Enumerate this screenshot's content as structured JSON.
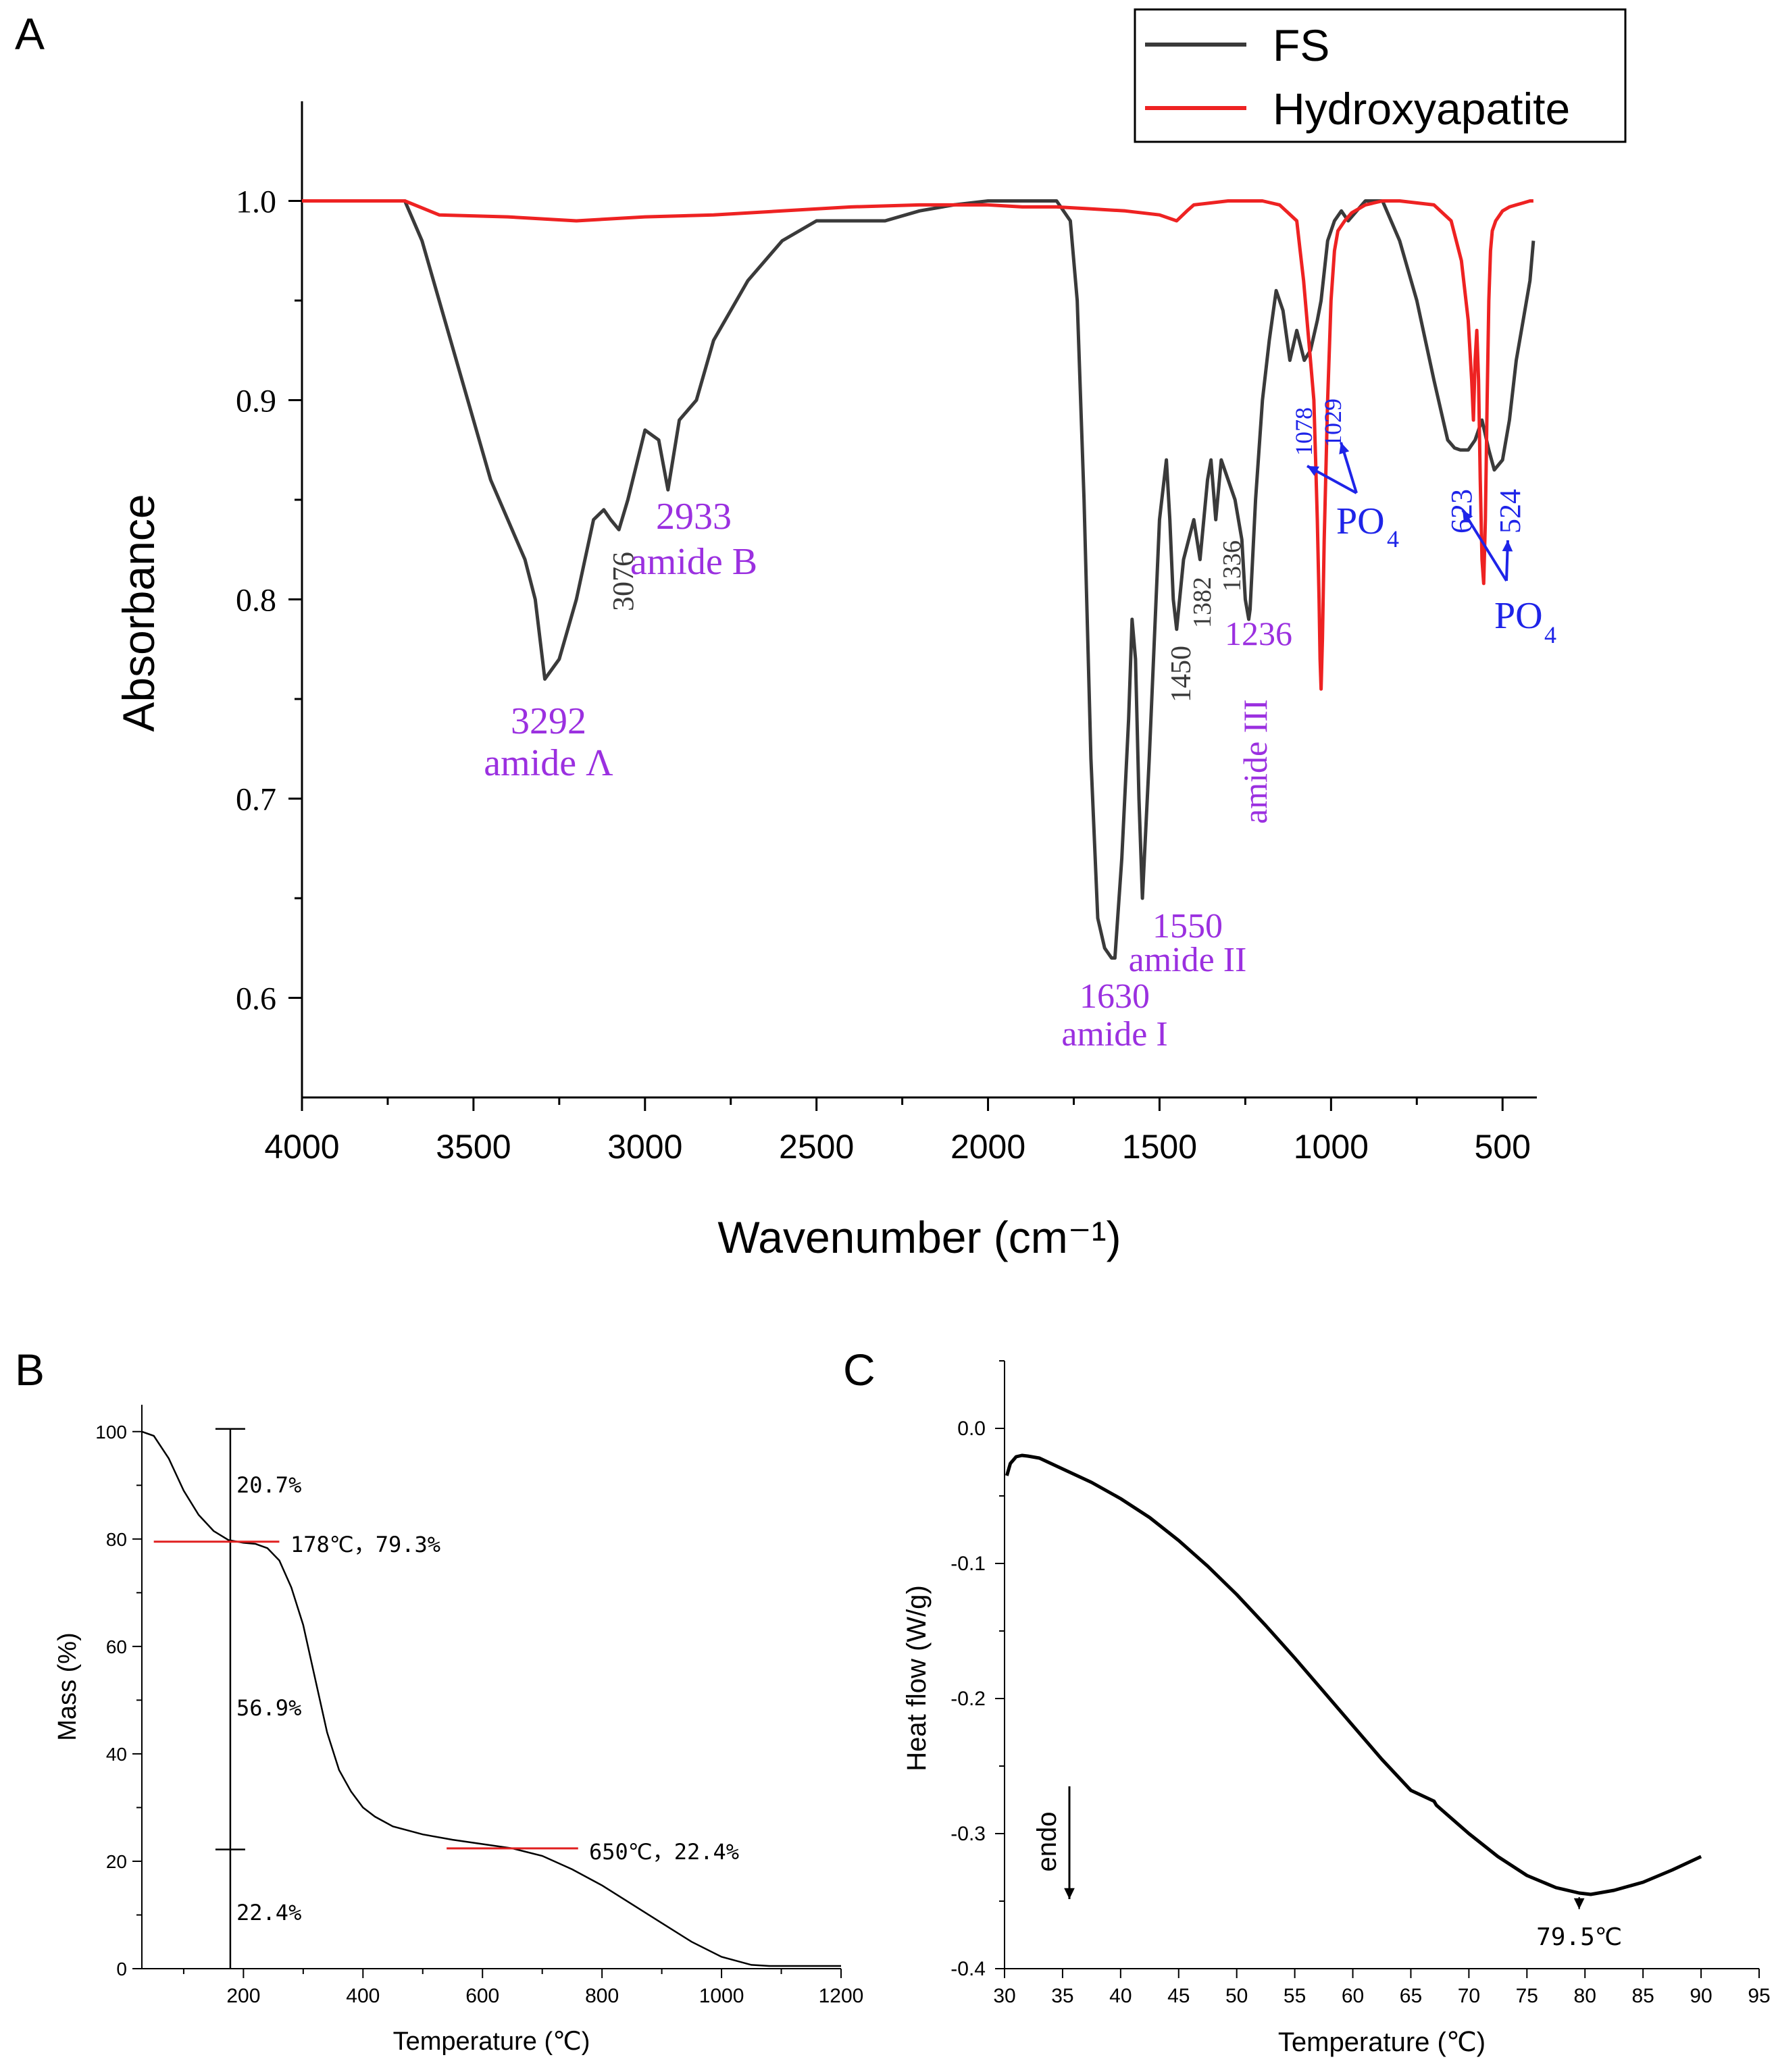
{
  "panels": {
    "a": "A",
    "b": "B",
    "c": "C"
  },
  "colors": {
    "fs": "#3a3a3a",
    "ha": "#ee2222",
    "purple": "#9b30e0",
    "blue": "#1e24e8",
    "red": "#e02020",
    "axis": "#000000"
  },
  "chart_data": [
    {
      "id": "A",
      "type": "line",
      "title": "",
      "xlabel": "Wavenumber (cm⁻¹)",
      "ylabel": "Absorbance",
      "xlim": [
        4000,
        400
      ],
      "ylim": [
        0.55,
        1.05
      ],
      "xticks": [
        4000,
        3500,
        3000,
        2500,
        2000,
        1500,
        1000,
        500
      ],
      "yticks": [
        0.6,
        0.7,
        0.8,
        0.9,
        1.0
      ],
      "legend": {
        "position": "top-right",
        "entries": [
          "FS",
          "Hydroxyapatite"
        ]
      },
      "series": [
        {
          "name": "FS",
          "x": [
            4000,
            3700,
            3650,
            3600,
            3550,
            3500,
            3450,
            3400,
            3350,
            3320,
            3292,
            3250,
            3200,
            3150,
            3120,
            3100,
            3076,
            3050,
            3000,
            2960,
            2933,
            2900,
            2850,
            2800,
            2700,
            2600,
            2500,
            2300,
            2200,
            2100,
            2000,
            1900,
            1800,
            1760,
            1740,
            1720,
            1700,
            1680,
            1660,
            1640,
            1630,
            1610,
            1590,
            1580,
            1570,
            1560,
            1550,
            1530,
            1500,
            1480,
            1470,
            1460,
            1450,
            1430,
            1400,
            1382,
            1360,
            1350,
            1336,
            1320,
            1300,
            1280,
            1260,
            1250,
            1240,
            1236,
            1220,
            1200,
            1180,
            1160,
            1140,
            1120,
            1100,
            1078,
            1060,
            1040,
            1029,
            1010,
            990,
            970,
            950,
            900,
            850,
            800,
            750,
            700,
            660,
            640,
            623,
            600,
            580,
            560,
            540,
            524,
            500,
            480,
            460,
            440,
            420,
            410
          ],
          "y": [
            1.0,
            1.0,
            0.98,
            0.95,
            0.92,
            0.89,
            0.86,
            0.84,
            0.82,
            0.8,
            0.76,
            0.77,
            0.8,
            0.84,
            0.845,
            0.84,
            0.835,
            0.85,
            0.885,
            0.88,
            0.855,
            0.89,
            0.9,
            0.93,
            0.96,
            0.98,
            0.99,
            0.99,
            0.995,
            0.998,
            1.0,
            1.0,
            1.0,
            0.99,
            0.95,
            0.85,
            0.72,
            0.64,
            0.625,
            0.62,
            0.62,
            0.67,
            0.74,
            0.79,
            0.77,
            0.7,
            0.65,
            0.72,
            0.84,
            0.87,
            0.84,
            0.8,
            0.785,
            0.82,
            0.84,
            0.82,
            0.86,
            0.87,
            0.84,
            0.87,
            0.86,
            0.85,
            0.83,
            0.8,
            0.79,
            0.795,
            0.85,
            0.9,
            0.93,
            0.955,
            0.945,
            0.92,
            0.935,
            0.92,
            0.925,
            0.94,
            0.95,
            0.98,
            0.99,
            0.995,
            0.99,
            1.0,
            1.0,
            0.98,
            0.95,
            0.91,
            0.88,
            0.876,
            0.875,
            0.875,
            0.88,
            0.89,
            0.875,
            0.865,
            0.87,
            0.89,
            0.92,
            0.94,
            0.96,
            0.98
          ]
        },
        {
          "name": "Hydroxyapatite",
          "x": [
            4000,
            3800,
            3700,
            3600,
            3400,
            3200,
            3000,
            2800,
            2600,
            2400,
            2200,
            2100,
            2000,
            1900,
            1800,
            1700,
            1600,
            1500,
            1450,
            1420,
            1400,
            1300,
            1200,
            1150,
            1100,
            1090,
            1080,
            1070,
            1060,
            1050,
            1045,
            1040,
            1035,
            1032,
            1029,
            1025,
            1020,
            1010,
            1000,
            990,
            980,
            960,
            940,
            920,
            900,
            850,
            800,
            700,
            650,
            620,
            600,
            590,
            585,
            580,
            575,
            570,
            565,
            560,
            555,
            550,
            545,
            540,
            535,
            530,
            520,
            500,
            480,
            460,
            440,
            420,
            410
          ],
          "y": [
            1.0,
            1.0,
            1.0,
            0.993,
            0.992,
            0.99,
            0.992,
            0.993,
            0.995,
            0.997,
            0.998,
            0.998,
            0.998,
            0.997,
            0.997,
            0.996,
            0.995,
            0.993,
            0.99,
            0.995,
            0.998,
            1.0,
            1.0,
            0.998,
            0.99,
            0.975,
            0.96,
            0.94,
            0.92,
            0.9,
            0.87,
            0.84,
            0.8,
            0.77,
            0.755,
            0.78,
            0.83,
            0.9,
            0.95,
            0.975,
            0.985,
            0.99,
            0.994,
            0.996,
            0.998,
            1.0,
            1.0,
            0.998,
            0.99,
            0.97,
            0.94,
            0.91,
            0.89,
            0.92,
            0.935,
            0.91,
            0.86,
            0.82,
            0.808,
            0.84,
            0.9,
            0.95,
            0.975,
            0.985,
            0.99,
            0.995,
            0.997,
            0.998,
            0.999,
            1.0,
            1.0
          ]
        }
      ],
      "annotations": [
        {
          "lines": [
            "3292",
            "amide Λ"
          ],
          "color": "purple"
        },
        {
          "lines": [
            "3076"
          ],
          "color": "fs",
          "rotated": true
        },
        {
          "lines": [
            "2933",
            "amide B"
          ],
          "color": "purple"
        },
        {
          "lines": [
            "1630",
            "amide I"
          ],
          "color": "purple"
        },
        {
          "lines": [
            "1550",
            "amide II"
          ],
          "color": "purple"
        },
        {
          "lines": [
            "1450"
          ],
          "color": "fs",
          "rotated": true
        },
        {
          "lines": [
            "1382"
          ],
          "color": "fs",
          "rotated": true
        },
        {
          "lines": [
            "1336"
          ],
          "color": "fs",
          "rotated": true
        },
        {
          "lines": [
            "1236"
          ],
          "color": "purple"
        },
        {
          "lines": [
            "amide III"
          ],
          "color": "purple",
          "rotated": true
        },
        {
          "lines": [
            "1078"
          ],
          "color": "blue",
          "rotated": true
        },
        {
          "lines": [
            "1029"
          ],
          "color": "blue",
          "rotated": true
        },
        {
          "lines": [
            "PO",
            "4"
          ],
          "color": "blue"
        },
        {
          "lines": [
            "623"
          ],
          "color": "blue",
          "rotated": true
        },
        {
          "lines": [
            "524"
          ],
          "color": "blue",
          "rotated": true
        },
        {
          "lines": [
            "PO",
            "4"
          ],
          "color": "blue"
        }
      ]
    },
    {
      "id": "B",
      "type": "line",
      "title": "",
      "xlabel": "Temperature (℃)",
      "ylabel": "Mass (%)",
      "xlim": [
        30,
        1200
      ],
      "ylim": [
        0,
        105
      ],
      "xticks": [
        200,
        400,
        600,
        800,
        1000,
        1200
      ],
      "yticks": [
        0,
        20,
        40,
        60,
        80,
        100
      ],
      "series": [
        {
          "name": "Mass",
          "x": [
            30,
            50,
            75,
            100,
            125,
            150,
            175,
            200,
            220,
            240,
            260,
            280,
            300,
            320,
            340,
            360,
            380,
            400,
            420,
            450,
            500,
            550,
            600,
            650,
            700,
            750,
            800,
            850,
            900,
            950,
            1000,
            1050,
            1080,
            1100,
            1150,
            1200
          ],
          "y": [
            100,
            99.2,
            95,
            89,
            84.5,
            81.5,
            79.8,
            79.3,
            79.1,
            78.3,
            76,
            71,
            64,
            54,
            44,
            37,
            33,
            30,
            28.3,
            26.5,
            25,
            24,
            23.2,
            22.4,
            21,
            18.5,
            15.5,
            12,
            8.5,
            5,
            2.2,
            0.7,
            0.5,
            0.5,
            0.5,
            0.5
          ]
        }
      ],
      "vertical_marker": {
        "x": 178,
        "ticks_y": [
          100.5,
          22.2
        ]
      },
      "steps": [
        {
          "label": "20.7%"
        },
        {
          "label": "56.9%"
        },
        {
          "label": "22.4%"
        }
      ],
      "tangents": [
        {
          "x1": 50,
          "x2": 260,
          "y": 79.5,
          "label": "178℃，79.3%"
        },
        {
          "x1": 540,
          "x2": 760,
          "y": 22.4,
          "label": "650℃，22.4%"
        }
      ]
    },
    {
      "id": "C",
      "type": "line",
      "title": "",
      "xlabel": "Temperature (℃)",
      "ylabel": "Heat flow (W/g)",
      "xlim": [
        30,
        95
      ],
      "ylim": [
        -0.4,
        0.05
      ],
      "xticks": [
        30,
        35,
        40,
        45,
        50,
        55,
        60,
        65,
        70,
        75,
        80,
        85,
        90,
        95
      ],
      "yticks": [
        0.0,
        -0.1,
        -0.2,
        -0.3,
        -0.4
      ],
      "series": [
        {
          "name": "Heat flow",
          "x": [
            30.2,
            30.5,
            31,
            31.5,
            32,
            33,
            35,
            37.5,
            40,
            42.5,
            45,
            47.5,
            50,
            52.5,
            55,
            57.5,
            60,
            62.5,
            65,
            67,
            67.2,
            70,
            72.5,
            75,
            77.5,
            79.5,
            80.5,
            82.5,
            85,
            87.5,
            90
          ],
          "y": [
            -0.035,
            -0.026,
            -0.021,
            -0.02,
            -0.0205,
            -0.022,
            -0.03,
            -0.04,
            -0.052,
            -0.066,
            -0.083,
            -0.102,
            -0.123,
            -0.146,
            -0.17,
            -0.195,
            -0.22,
            -0.245,
            -0.268,
            -0.276,
            -0.279,
            -0.3,
            -0.317,
            -0.331,
            -0.34,
            -0.344,
            -0.345,
            -0.342,
            -0.336,
            -0.327,
            -0.317
          ]
        }
      ],
      "peak_label": "79.5℃",
      "endo_label": "endo"
    }
  ]
}
